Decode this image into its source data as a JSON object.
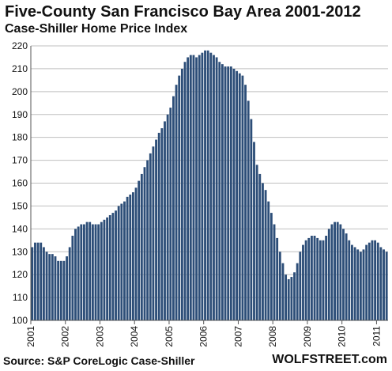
{
  "header": {
    "title": "Five-County San Francisco Bay Area 2001-2012",
    "subtitle": "Case-Shiller Home Price Index"
  },
  "footer": {
    "source": "Source: S&P CoreLogic Case-Shiller",
    "brand": "WOLFSTREET.com"
  },
  "colors": {
    "bar": "#2d4e78",
    "grid": "#bfbfbf",
    "axis": "#555555",
    "text": "#111111"
  },
  "chart_data": {
    "type": "bar",
    "title": "Five-County San Francisco Bay Area 2001-2012",
    "subtitle": "Case-Shiller Home Price Index",
    "xlabel": "",
    "ylabel": "",
    "ylim": [
      100,
      220
    ],
    "yticks": [
      100,
      110,
      120,
      130,
      140,
      150,
      160,
      170,
      180,
      190,
      200,
      210,
      220
    ],
    "xticks": [
      "2001",
      "2002",
      "2003",
      "2004",
      "2005",
      "2006",
      "2007",
      "2008",
      "2009",
      "2010",
      "2011"
    ],
    "grid": "horizontal",
    "legend": "none",
    "series": [
      {
        "values": [
          132,
          134,
          134,
          134,
          132,
          130,
          129,
          129,
          128,
          126,
          126,
          126,
          128,
          132,
          137,
          140,
          141,
          142,
          142,
          143,
          143,
          142,
          142,
          142,
          143,
          144,
          145,
          146,
          147,
          148,
          150,
          151,
          152,
          154,
          155,
          156,
          158,
          161,
          164,
          167,
          170,
          173,
          176,
          179,
          182,
          184,
          187,
          190,
          193,
          198,
          203,
          207,
          210,
          213,
          215,
          216,
          216,
          215,
          216,
          217,
          218,
          218,
          217,
          216,
          215,
          213,
          212,
          211,
          211,
          211,
          210,
          209,
          208,
          207,
          203,
          196,
          188,
          178,
          168,
          164,
          160,
          157,
          152,
          147,
          142,
          136,
          130,
          125,
          120,
          118,
          119,
          121,
          125,
          130,
          133,
          135,
          136,
          137,
          137,
          136,
          135,
          135,
          137,
          140,
          142,
          143,
          143,
          142,
          140,
          138,
          135,
          133,
          132,
          131,
          130,
          131,
          133,
          134,
          135,
          135,
          134,
          132,
          131,
          130
        ]
      }
    ]
  }
}
